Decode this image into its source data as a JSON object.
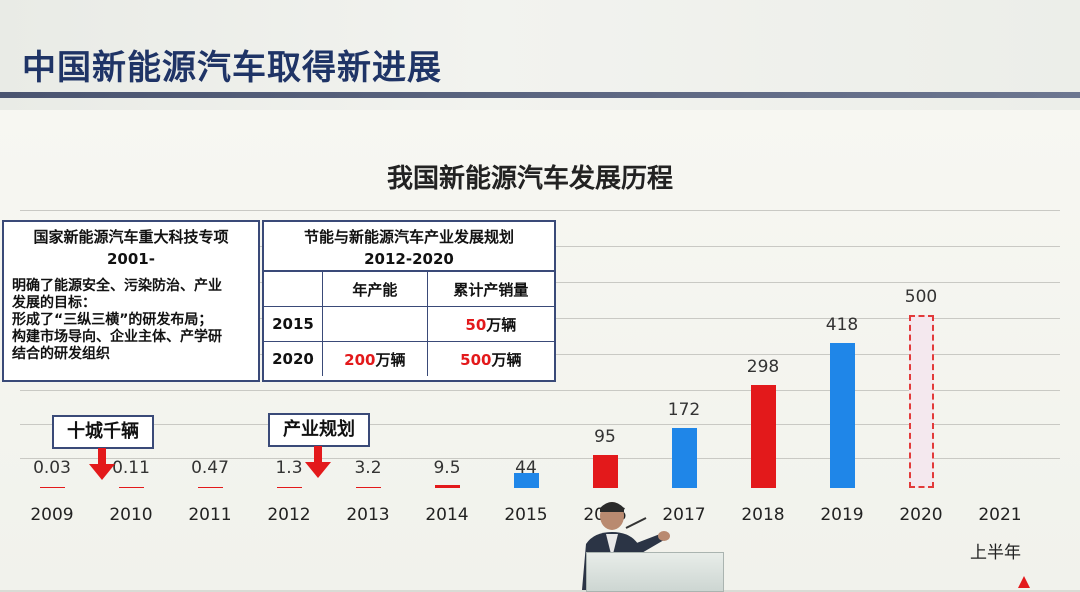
{
  "slide": {
    "title": "中国新能源汽车取得新进展"
  },
  "chart_data": {
    "type": "bar",
    "title": "我国新能源汽车发展历程",
    "categories": [
      "2009",
      "2010",
      "2011",
      "2012",
      "2013",
      "2014",
      "2015",
      "2016",
      "2017",
      "2018",
      "2019",
      "2020",
      "2021"
    ],
    "values": [
      0.03,
      0.11,
      0.47,
      1.3,
      3.2,
      9.5,
      44,
      95,
      172,
      298,
      418,
      500,
      null
    ],
    "value_labels": [
      "0.03",
      "0.11",
      "0.47",
      "1.3",
      "3.2",
      "9.5",
      "44",
      "95",
      "172",
      "298",
      "418",
      "500",
      ""
    ],
    "bar_colors": [
      "#e3191b",
      "#e3191b",
      "#e3191b",
      "#e3191b",
      "#e3191b",
      "#e3191b",
      "#1f86e8",
      "#e3191b",
      "#1f86e8",
      "#e3191b",
      "#1f86e8",
      "dashed",
      "none"
    ],
    "last_category_sub": "上半年",
    "ylim": [
      0,
      500
    ]
  },
  "left_box": {
    "heading_line1": "国家新能源汽车重大科技专项",
    "heading_line2": "2001-",
    "body_lines": [
      "明确了能源安全、污染防治、产业",
      "发展的目标：",
      "形成了“三纵三横”的研发布局；",
      "构建市场导向、企业主体、产学研",
      "结合的研发组织"
    ]
  },
  "right_box": {
    "heading_line1": "节能与新能源汽车产业发展规划",
    "heading_line2": "2012-2020",
    "col_capacity": "年产能",
    "col_cumulative": "累计产销量",
    "row1_year": "2015",
    "row1_capacity": "",
    "row1_cum_num": "50",
    "row1_cum_unit": "万辆",
    "row2_year": "2020",
    "row2_cap_num": "200",
    "row2_cap_unit": "万辆",
    "row2_cum_num": "500",
    "row2_cum_unit": "万辆"
  },
  "tags": {
    "tag1": "十城千辆",
    "tag2": "产业规划"
  },
  "colors": {
    "red": "#e3191b",
    "blue": "#1f86e8",
    "title_blue": "#1f3466"
  }
}
